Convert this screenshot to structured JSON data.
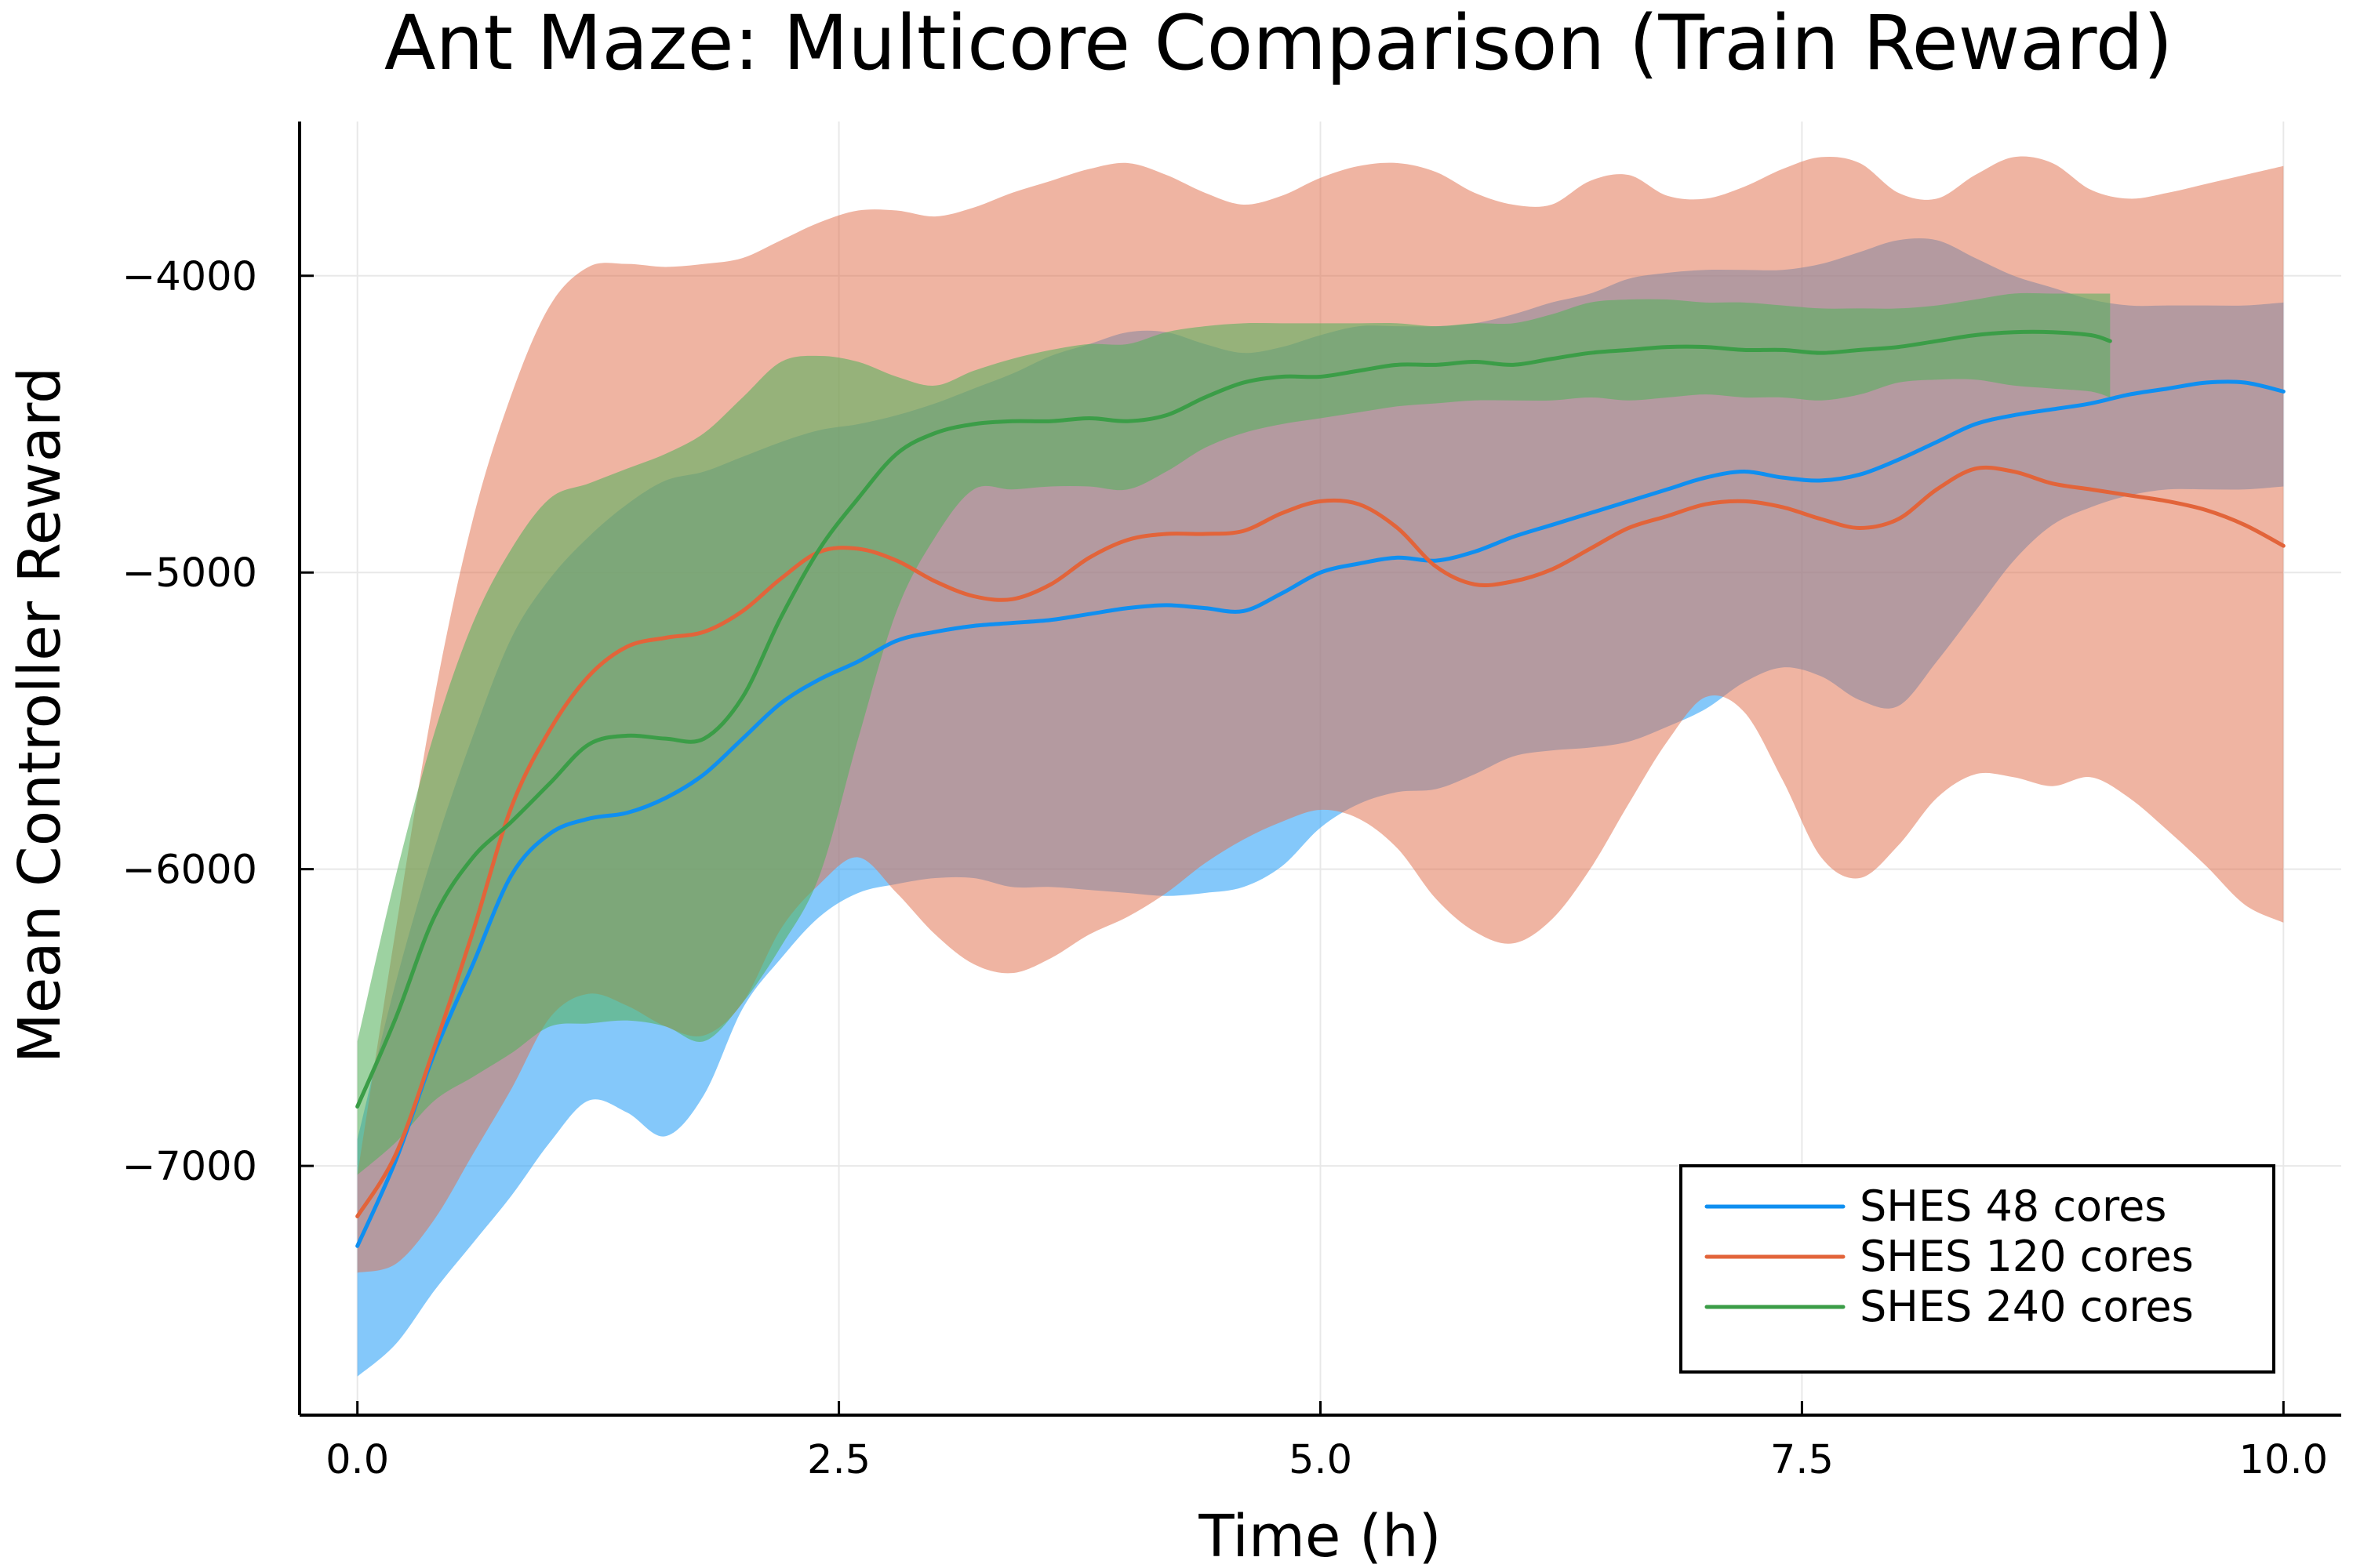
{
  "chart_data": {
    "type": "line",
    "title": "Ant Maze: Multicore Comparison (Train Reward)",
    "xlabel": "Time (h)",
    "ylabel": "Mean Controller Reward",
    "xlim": [
      -0.3,
      10.3
    ],
    "ylim": [
      -7840,
      -3480
    ],
    "x_ticks": [
      0,
      2.5,
      5,
      7.5,
      10
    ],
    "x_tick_labels": [
      "0.0",
      "2.5",
      "5.0",
      "7.5",
      "10.0"
    ],
    "y_ticks": [
      -7000,
      -6000,
      -5000,
      -4000
    ],
    "y_tick_labels": [
      "−7000",
      "−6000",
      "−5000",
      "−4000"
    ],
    "grid": true,
    "legend_position": "bottom-right",
    "series": [
      {
        "name": "SHES 48 cores",
        "color": "#0f8ff0",
        "band_color": "#39a7f7",
        "band_opacity": 0.62,
        "x": [
          0,
          0.2,
          0.4,
          0.6,
          0.8,
          1.0,
          1.2,
          1.4,
          1.6,
          1.8,
          2.0,
          2.2,
          2.4,
          2.6,
          2.8,
          3.0,
          3.2,
          3.4,
          3.6,
          3.8,
          4.0,
          4.2,
          4.4,
          4.6,
          4.8,
          5.0,
          5.2,
          5.4,
          5.6,
          5.8,
          6.0,
          6.2,
          6.4,
          6.6,
          6.8,
          7.0,
          7.2,
          7.4,
          7.6,
          7.8,
          8.0,
          8.2,
          8.4,
          8.6,
          8.8,
          9.0,
          9.2,
          9.4,
          9.6,
          9.8,
          10.0
        ],
        "mean": [
          -7270,
          -6980,
          -6620,
          -6320,
          -6020,
          -5880,
          -5830,
          -5810,
          -5760,
          -5680,
          -5560,
          -5440,
          -5360,
          -5300,
          -5230,
          -5200,
          -5180,
          -5170,
          -5160,
          -5140,
          -5120,
          -5110,
          -5120,
          -5130,
          -5070,
          -5000,
          -4970,
          -4950,
          -4960,
          -4930,
          -4880,
          -4840,
          -4800,
          -4760,
          -4720,
          -4680,
          -4660,
          -4680,
          -4690,
          -4670,
          -4620,
          -4560,
          -4500,
          -4470,
          -4450,
          -4430,
          -4400,
          -4380,
          -4360,
          -4360,
          -4390
        ],
        "lower": [
          -7710,
          -7600,
          -7420,
          -7260,
          -7100,
          -6920,
          -6780,
          -6820,
          -6900,
          -6760,
          -6470,
          -6300,
          -6160,
          -6080,
          -6050,
          -6030,
          -6030,
          -6060,
          -6060,
          -6070,
          -6080,
          -6090,
          -6080,
          -6060,
          -5990,
          -5860,
          -5780,
          -5740,
          -5730,
          -5680,
          -5620,
          -5600,
          -5590,
          -5570,
          -5520,
          -5460,
          -5370,
          -5320,
          -5350,
          -5430,
          -5450,
          -5300,
          -5130,
          -4960,
          -4840,
          -4780,
          -4740,
          -4720,
          -4720,
          -4720,
          -4710
        ],
        "upper": [
          -6910,
          -6380,
          -5930,
          -5550,
          -5220,
          -5020,
          -4880,
          -4770,
          -4690,
          -4660,
          -4610,
          -4560,
          -4520,
          -4500,
          -4470,
          -4430,
          -4380,
          -4330,
          -4270,
          -4230,
          -4190,
          -4190,
          -4230,
          -4260,
          -4240,
          -4200,
          -4170,
          -4170,
          -4170,
          -4160,
          -4130,
          -4090,
          -4060,
          -4010,
          -3990,
          -3980,
          -3980,
          -3980,
          -3960,
          -3920,
          -3880,
          -3880,
          -3940,
          -4000,
          -4040,
          -4080,
          -4100,
          -4100,
          -4100,
          -4100,
          -4090
        ]
      },
      {
        "name": "SHES 120 cores",
        "color": "#e2643a",
        "band_color": "#e1704c",
        "band_opacity": 0.52,
        "x": [
          0,
          0.2,
          0.4,
          0.6,
          0.8,
          1.0,
          1.2,
          1.4,
          1.6,
          1.8,
          2.0,
          2.2,
          2.4,
          2.6,
          2.8,
          3.0,
          3.2,
          3.4,
          3.6,
          3.8,
          4.0,
          4.2,
          4.4,
          4.6,
          4.8,
          5.0,
          5.2,
          5.4,
          5.6,
          5.8,
          6.0,
          6.2,
          6.4,
          6.6,
          6.8,
          7.0,
          7.2,
          7.4,
          7.6,
          7.8,
          8.0,
          8.2,
          8.4,
          8.6,
          8.8,
          9.0,
          9.2,
          9.4,
          9.6,
          9.8,
          10.0
        ],
        "mean": [
          -7170,
          -6960,
          -6600,
          -6210,
          -5790,
          -5530,
          -5350,
          -5250,
          -5220,
          -5200,
          -5130,
          -5020,
          -4930,
          -4920,
          -4960,
          -5030,
          -5080,
          -5090,
          -5040,
          -4950,
          -4890,
          -4870,
          -4870,
          -4860,
          -4800,
          -4760,
          -4770,
          -4850,
          -4980,
          -5040,
          -5030,
          -4990,
          -4920,
          -4850,
          -4810,
          -4770,
          -4760,
          -4780,
          -4820,
          -4850,
          -4820,
          -4720,
          -4650,
          -4660,
          -4700,
          -4720,
          -4740,
          -4760,
          -4790,
          -4840,
          -4910
        ],
        "lower": [
          -7360,
          -7330,
          -7180,
          -6960,
          -6740,
          -6500,
          -6420,
          -6460,
          -6530,
          -6560,
          -6450,
          -6200,
          -6050,
          -5960,
          -6080,
          -6220,
          -6320,
          -6350,
          -6300,
          -6220,
          -6160,
          -6080,
          -5980,
          -5900,
          -5840,
          -5800,
          -5830,
          -5930,
          -6100,
          -6210,
          -6250,
          -6170,
          -6000,
          -5780,
          -5570,
          -5420,
          -5470,
          -5700,
          -5960,
          -6030,
          -5920,
          -5760,
          -5680,
          -5690,
          -5720,
          -5690,
          -5760,
          -5870,
          -5990,
          -6120,
          -6180
        ],
        "upper": [
          -7030,
          -6200,
          -5420,
          -4820,
          -4400,
          -4100,
          -3970,
          -3960,
          -3970,
          -3960,
          -3940,
          -3880,
          -3820,
          -3780,
          -3780,
          -3800,
          -3770,
          -3720,
          -3680,
          -3640,
          -3620,
          -3660,
          -3720,
          -3760,
          -3730,
          -3670,
          -3630,
          -3620,
          -3650,
          -3720,
          -3760,
          -3760,
          -3680,
          -3660,
          -3730,
          -3740,
          -3700,
          -3640,
          -3600,
          -3620,
          -3720,
          -3740,
          -3660,
          -3600,
          -3620,
          -3710,
          -3740,
          -3720,
          -3690,
          -3660,
          -3630
        ]
      },
      {
        "name": "SHES 240 cores",
        "color": "#3b9d47",
        "band_color": "#56b15d",
        "band_opacity": 0.58,
        "x": [
          0,
          0.2,
          0.4,
          0.6,
          0.8,
          1.0,
          1.2,
          1.4,
          1.6,
          1.8,
          2.0,
          2.2,
          2.4,
          2.6,
          2.8,
          3.0,
          3.2,
          3.4,
          3.6,
          3.8,
          4.0,
          4.2,
          4.4,
          4.6,
          4.8,
          5.0,
          5.2,
          5.4,
          5.6,
          5.8,
          6.0,
          6.2,
          6.4,
          6.6,
          6.8,
          7.0,
          7.2,
          7.4,
          7.6,
          7.8,
          8.0,
          8.2,
          8.4,
          8.6,
          8.8,
          9.0,
          9.1
        ],
        "mean": [
          -6800,
          -6500,
          -6160,
          -5960,
          -5840,
          -5710,
          -5580,
          -5550,
          -5560,
          -5560,
          -5420,
          -5150,
          -4920,
          -4750,
          -4600,
          -4530,
          -4500,
          -4490,
          -4490,
          -4480,
          -4490,
          -4470,
          -4410,
          -4360,
          -4340,
          -4340,
          -4320,
          -4300,
          -4300,
          -4290,
          -4300,
          -4280,
          -4260,
          -4250,
          -4240,
          -4240,
          -4250,
          -4250,
          -4260,
          -4250,
          -4240,
          -4220,
          -4200,
          -4190,
          -4190,
          -4200,
          -4220
        ],
        "lower": [
          -7030,
          -6920,
          -6780,
          -6700,
          -6620,
          -6530,
          -6520,
          -6510,
          -6530,
          -6580,
          -6450,
          -6260,
          -6020,
          -5560,
          -5130,
          -4880,
          -4720,
          -4720,
          -4710,
          -4710,
          -4720,
          -4660,
          -4580,
          -4530,
          -4500,
          -4480,
          -4460,
          -4440,
          -4430,
          -4420,
          -4420,
          -4420,
          -4410,
          -4420,
          -4410,
          -4400,
          -4410,
          -4410,
          -4420,
          -4400,
          -4360,
          -4350,
          -4350,
          -4370,
          -4380,
          -4390,
          -4410
        ],
        "upper": [
          -6580,
          -6020,
          -5540,
          -5170,
          -4920,
          -4750,
          -4700,
          -4650,
          -4600,
          -4530,
          -4410,
          -4290,
          -4270,
          -4290,
          -4340,
          -4370,
          -4320,
          -4280,
          -4250,
          -4230,
          -4230,
          -4190,
          -4170,
          -4160,
          -4160,
          -4160,
          -4160,
          -4160,
          -4170,
          -4160,
          -4160,
          -4130,
          -4090,
          -4080,
          -4080,
          -4090,
          -4090,
          -4100,
          -4110,
          -4110,
          -4110,
          -4100,
          -4080,
          -4060,
          -4060,
          -4060,
          -4060
        ]
      }
    ]
  }
}
